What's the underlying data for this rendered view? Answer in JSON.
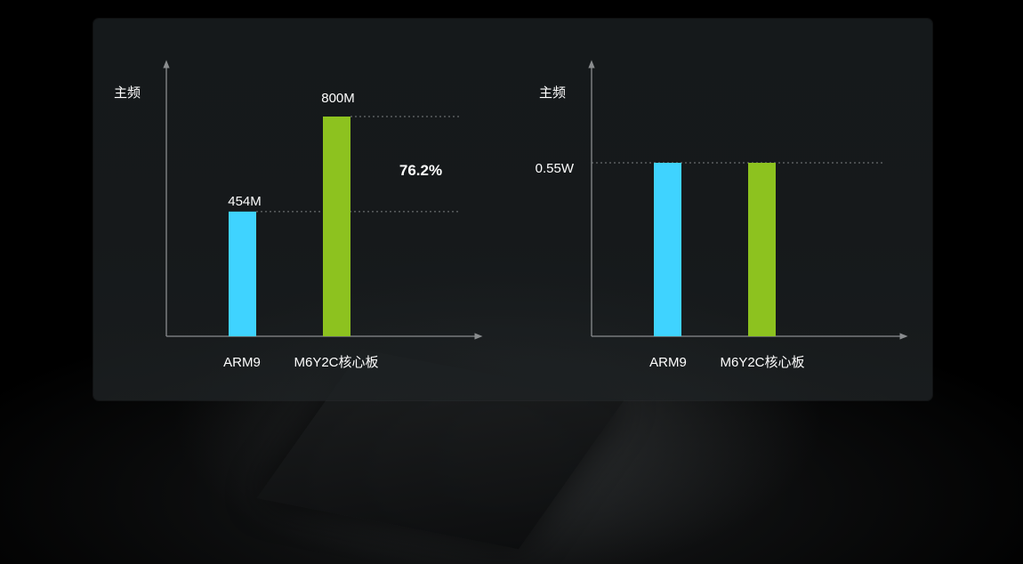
{
  "chart_data": [
    {
      "type": "bar",
      "ylabel": "主频",
      "categories": [
        "ARM9",
        "M6Y2C核心板"
      ],
      "values": [
        454,
        800
      ],
      "value_labels": [
        "454M",
        "800M"
      ],
      "annotation": "76.2%",
      "colors": [
        "#3fd3ff",
        "#8dc21f"
      ]
    },
    {
      "type": "bar",
      "ylabel": "主频",
      "categories": [
        "ARM9",
        "M6Y2C核心板"
      ],
      "values": [
        0.55,
        0.55
      ],
      "reference_label": "0.55W",
      "colors": [
        "#3fd3ff",
        "#8dc21f"
      ]
    }
  ]
}
